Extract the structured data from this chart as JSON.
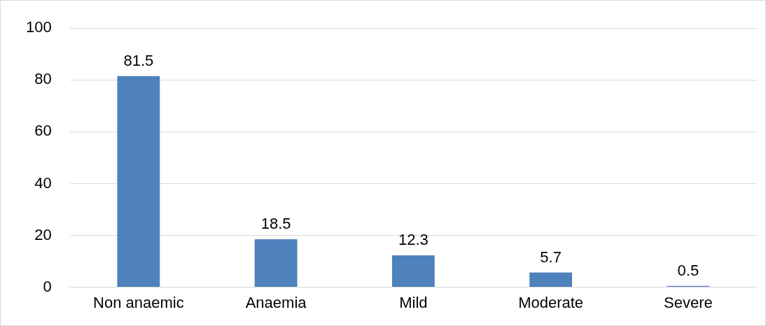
{
  "chart_data": {
    "type": "bar",
    "categories": [
      "Non anaemic",
      "Anaemia",
      "Mild",
      "Moderate",
      "Severe"
    ],
    "values": [
      81.5,
      18.5,
      12.3,
      5.7,
      0.5
    ],
    "color": "#4f81bd",
    "ylim": [
      0,
      100
    ],
    "yticks": [
      0,
      20,
      40,
      60,
      80,
      100
    ],
    "grid": "y",
    "data_labels": true,
    "legend": false
  }
}
